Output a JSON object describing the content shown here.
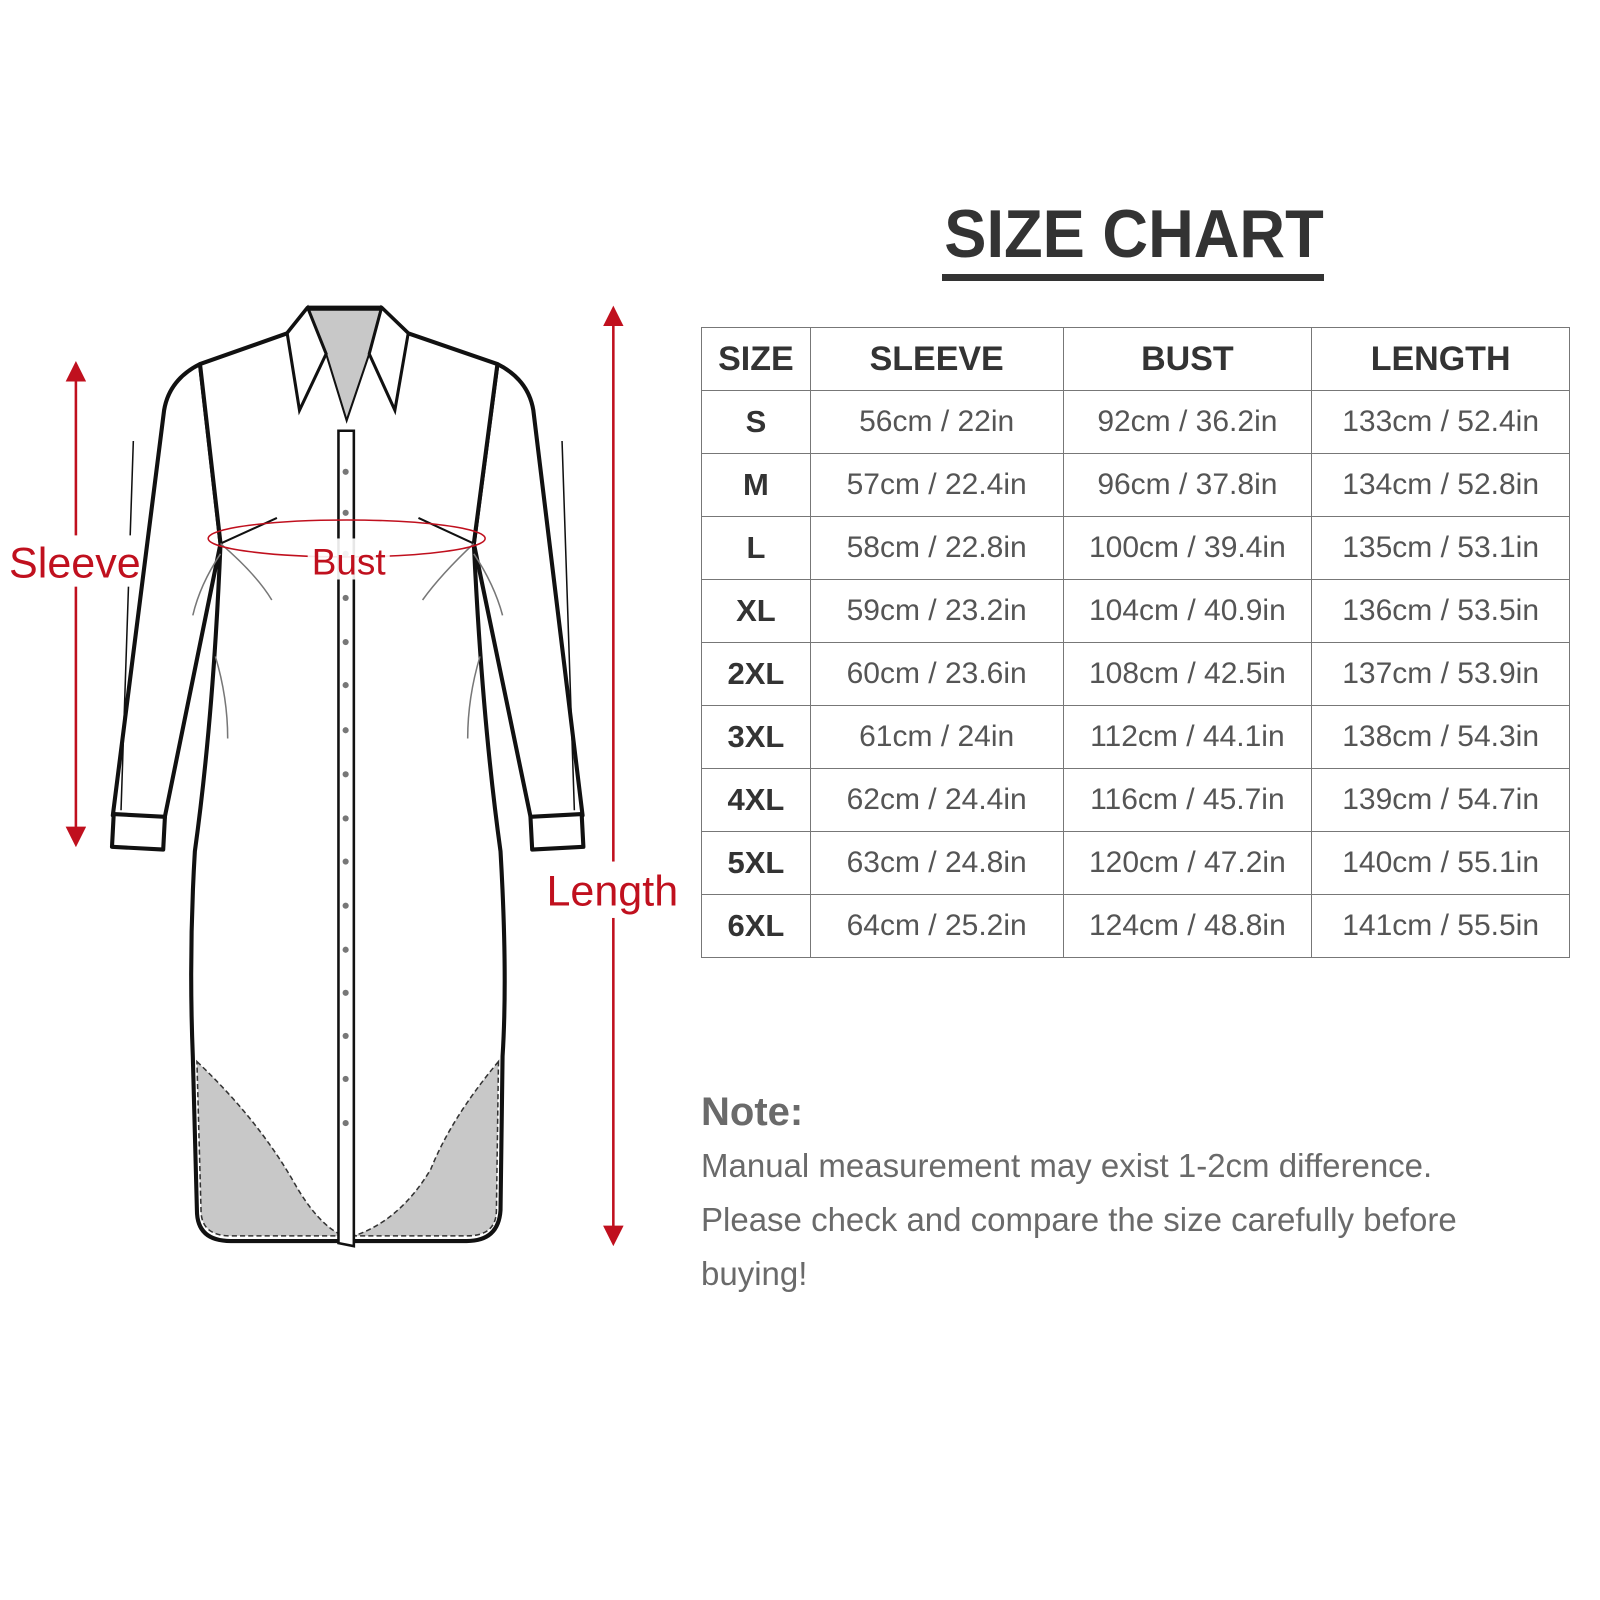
{
  "diagram": {
    "labels": {
      "sleeve": "Sleeve",
      "bust": "Bust",
      "length": "Length"
    },
    "accent_color": "#c0101e"
  },
  "title": "SIZE CHART",
  "table": {
    "headers": [
      "SIZE",
      "SLEEVE",
      "BUST",
      "LENGTH"
    ],
    "rows": [
      [
        "S",
        "56cm / 22in",
        "92cm / 36.2in",
        "133cm / 52.4in"
      ],
      [
        "M",
        "57cm / 22.4in",
        "96cm / 37.8in",
        "134cm / 52.8in"
      ],
      [
        "L",
        "58cm / 22.8in",
        "100cm / 39.4in",
        "135cm / 53.1in"
      ],
      [
        "XL",
        "59cm / 23.2in",
        "104cm / 40.9in",
        "136cm / 53.5in"
      ],
      [
        "2XL",
        "60cm / 23.6in",
        "108cm / 42.5in",
        "137cm / 53.9in"
      ],
      [
        "3XL",
        "61cm / 24in",
        "112cm / 44.1in",
        "138cm / 54.3in"
      ],
      [
        "4XL",
        "62cm / 24.4in",
        "116cm / 45.7in",
        "139cm / 54.7in"
      ],
      [
        "5XL",
        "63cm / 24.8in",
        "120cm / 47.2in",
        "140cm / 55.1in"
      ],
      [
        "6XL",
        "64cm / 25.2in",
        "124cm / 48.8in",
        "141cm / 55.5in"
      ]
    ]
  },
  "note": {
    "title": "Note:",
    "lines": [
      "Manual measurement may exist 1-2cm difference.",
      "Please check and compare the size carefully before",
      "buying!"
    ]
  }
}
